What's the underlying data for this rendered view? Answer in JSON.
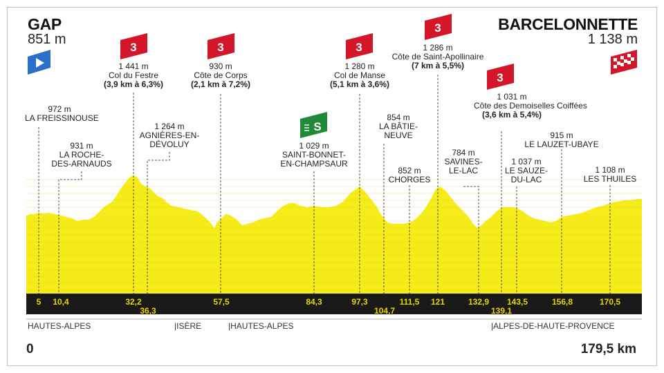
{
  "start": {
    "name": "GAP",
    "altitude": "851 m"
  },
  "finish": {
    "name": "BARCELONNETTE",
    "altitude": "1 138 m"
  },
  "distance_axis": {
    "start_label": "0",
    "end_label": "179,5 km"
  },
  "colors": {
    "profile": "#f5ec1a",
    "band": "#1a1a1a",
    "km_text": "#e7d600",
    "climb_badge": "#d4162b",
    "sprint_badge": "#1f8a3a",
    "start_flag": "#2a6fc9"
  },
  "climbs": [
    {
      "category": "3",
      "altitude": "1 441 m",
      "name": "Col du Festre",
      "detail": "(3,9 km à 6,3%)"
    },
    {
      "category": "3",
      "altitude": "930 m",
      "name": "Côte de Corps",
      "detail": "(2,1 km à 7,2%)"
    },
    {
      "category": "3",
      "altitude": "1 280 m",
      "name": "Col de Manse",
      "detail": "(5,1 km à 3,6%)"
    },
    {
      "category": "3",
      "altitude": "1 286 m",
      "name": "Côte de Saint-Apollinaire",
      "detail": "(7 km à 5,5%)"
    },
    {
      "category": "3",
      "altitude": "1 031 m",
      "name": "Côte des Demoiselles Coiffées",
      "detail": "(3,6 km à 5,4%)"
    }
  ],
  "sprint": {
    "badge": "S",
    "altitude": "1 029 m",
    "name": "SAINT-BONNET-EN-CHAMPSAUR"
  },
  "places": [
    {
      "altitude": "972 m",
      "name": "LA FREISSINOUSE"
    },
    {
      "altitude": "931 m",
      "name_line1": "LA ROCHE-",
      "name_line2": "DES-ARNAUDS"
    },
    {
      "altitude": "1 264 m",
      "name_line1": "AGNIÈRES-EN-",
      "name_line2": "DÉVOLUY"
    },
    {
      "altitude": "854 m",
      "name_line1": "LA BÂTIE-",
      "name_line2": "NEUVE"
    },
    {
      "altitude": "852 m",
      "name": "CHORGES"
    },
    {
      "altitude": "784 m",
      "name_line1": "SAVINES-",
      "name_line2": "LE-LAC"
    },
    {
      "altitude": "1 037 m",
      "name_line1": "LE SAUZE-",
      "name_line2": "DU-LAC"
    },
    {
      "altitude": "915 m",
      "name": "LE LAUZET-UBAYE"
    },
    {
      "altitude": "1 108 m",
      "name": "LES THUILES"
    }
  ],
  "km_marks": [
    "5",
    "10,4",
    "32,2",
    "36,3",
    "57,5",
    "84,3",
    "97,3",
    "104,7",
    "111,5",
    "121",
    "132,9",
    "139,1",
    "143,5",
    "156,8",
    "170,5"
  ],
  "departments": [
    "HAUTES-ALPES",
    "|ISÈRE",
    "|HAUTES-ALPES",
    "|ALPES-DE-HAUTE-PROVENCE"
  ]
}
